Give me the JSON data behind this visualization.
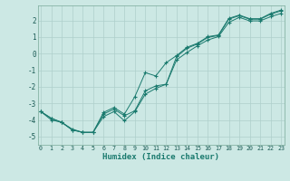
{
  "x": [
    0,
    1,
    2,
    3,
    4,
    5,
    6,
    7,
    8,
    9,
    10,
    11,
    12,
    13,
    14,
    15,
    16,
    17,
    18,
    19,
    20,
    21,
    22,
    23
  ],
  "line1": [
    -3.5,
    -4.0,
    -4.15,
    -4.55,
    -4.75,
    -4.75,
    -3.55,
    -3.25,
    -3.65,
    -2.6,
    -1.15,
    -1.35,
    -0.55,
    -0.12,
    0.38,
    0.62,
    1.02,
    1.12,
    2.12,
    2.32,
    2.1,
    2.1,
    2.42,
    2.62
  ],
  "line2": [
    -3.5,
    -3.9,
    -4.15,
    -4.6,
    -4.75,
    -4.75,
    -3.8,
    -3.5,
    -4.05,
    -3.5,
    -2.45,
    -2.1,
    -1.85,
    -0.38,
    0.07,
    0.47,
    0.82,
    1.02,
    1.88,
    2.18,
    1.97,
    1.97,
    2.22,
    2.42
  ],
  "line3": [
    -3.5,
    -3.9,
    -4.15,
    -4.6,
    -4.75,
    -4.75,
    -3.65,
    -3.35,
    -3.75,
    -3.45,
    -2.25,
    -1.95,
    -1.85,
    -0.18,
    0.32,
    0.58,
    0.98,
    1.08,
    2.08,
    2.28,
    2.07,
    2.07,
    2.37,
    2.57
  ],
  "line_color": "#1a7a6e",
  "bg_color": "#cce8e4",
  "grid_color": "#aecfcb",
  "xlabel": "Humidex (Indice chaleur)",
  "xlabel_fontsize": 6.5,
  "yticks": [
    -5,
    -4,
    -3,
    -2,
    -1,
    0,
    1,
    2
  ],
  "xticks": [
    0,
    1,
    2,
    3,
    4,
    5,
    6,
    7,
    8,
    9,
    10,
    11,
    12,
    13,
    14,
    15,
    16,
    17,
    18,
    19,
    20,
    21,
    22,
    23
  ],
  "xlim": [
    -0.3,
    23.3
  ],
  "ylim": [
    -5.5,
    2.9
  ]
}
